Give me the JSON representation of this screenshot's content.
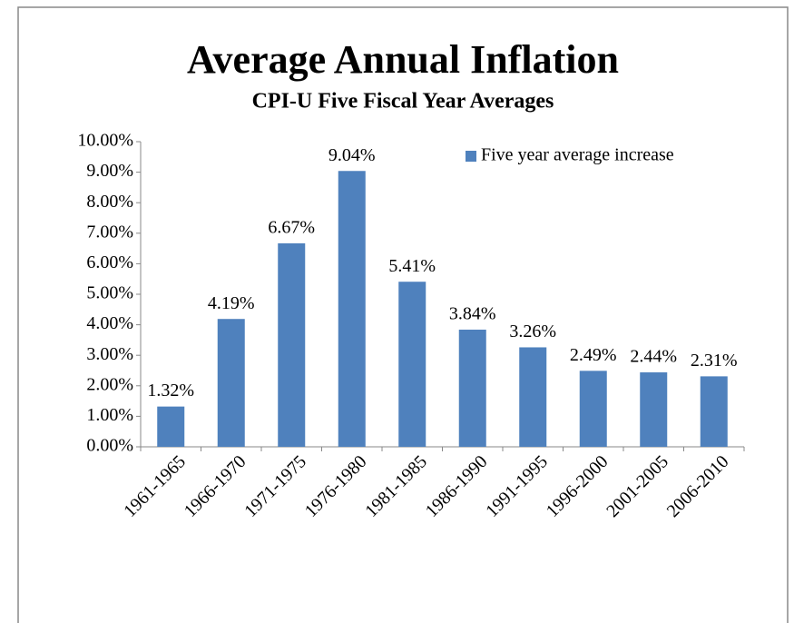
{
  "chart_data": {
    "type": "bar",
    "title": "Average Annual Inflation",
    "subtitle": "CPI-U Five Fiscal Year Averages",
    "categories": [
      "1961-1965",
      "1966-1970",
      "1971-1975",
      "1976-1980",
      "1981-1985",
      "1986-1990",
      "1991-1995",
      "1996-2000",
      "2001-2005",
      "2006-2010"
    ],
    "series": [
      {
        "name": "Five year average increase",
        "color": "#4f81bd",
        "values": [
          1.32,
          4.19,
          6.67,
          9.04,
          5.41,
          3.84,
          3.26,
          2.49,
          2.44,
          2.31
        ],
        "value_labels": [
          "1.32%",
          "4.19%",
          "6.67%",
          "9.04%",
          "5.41%",
          "3.84%",
          "3.26%",
          "2.49%",
          "2.44%",
          "2.31%"
        ]
      }
    ],
    "ylim": [
      0,
      10
    ],
    "yticks": [
      {
        "value": 0,
        "label": "0.00%"
      },
      {
        "value": 1,
        "label": "1.00%"
      },
      {
        "value": 2,
        "label": "2.00%"
      },
      {
        "value": 3,
        "label": "3.00%"
      },
      {
        "value": 4,
        "label": "4.00%"
      },
      {
        "value": 5,
        "label": "5.00%"
      },
      {
        "value": 6,
        "label": "6.00%"
      },
      {
        "value": 7,
        "label": "7.00%"
      },
      {
        "value": 8,
        "label": "8.00%"
      },
      {
        "value": 9,
        "label": "9.00%"
      },
      {
        "value": 10,
        "label": "10.00%"
      }
    ],
    "grid": false,
    "legend": "top-right"
  }
}
